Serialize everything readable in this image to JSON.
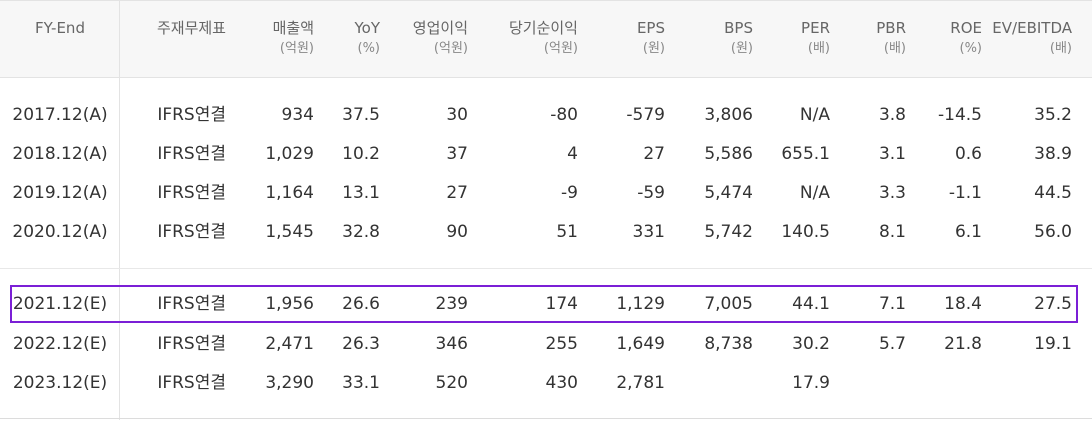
{
  "table": {
    "headers": [
      {
        "label": "FY-End",
        "unit": ""
      },
      {
        "label": "주재무제표",
        "unit": ""
      },
      {
        "label": "매출액",
        "unit": "(억원)"
      },
      {
        "label": "YoY",
        "unit": "(%)"
      },
      {
        "label": "영업이익",
        "unit": "(억원)"
      },
      {
        "label": "당기순이익",
        "unit": "(억원)"
      },
      {
        "label": "EPS",
        "unit": "(원)"
      },
      {
        "label": "BPS",
        "unit": "(원)"
      },
      {
        "label": "PER",
        "unit": "(배)"
      },
      {
        "label": "PBR",
        "unit": "(배)"
      },
      {
        "label": "ROE",
        "unit": "(%)"
      },
      {
        "label": "EV/EBITDA",
        "unit": "(배)"
      }
    ],
    "rows": [
      {
        "fy": "2017.12(A)",
        "type": "IFRS연결",
        "revenue": "934",
        "yoy": "37.5",
        "op": "30",
        "net": "-80",
        "eps": "-579",
        "bps": "3,806",
        "per": "N/A",
        "pbr": "3.8",
        "roe": "-14.5",
        "ev": "35.2"
      },
      {
        "fy": "2018.12(A)",
        "type": "IFRS연결",
        "revenue": "1,029",
        "yoy": "10.2",
        "op": "37",
        "net": "4",
        "eps": "27",
        "bps": "5,586",
        "per": "655.1",
        "pbr": "3.1",
        "roe": "0.6",
        "ev": "38.9"
      },
      {
        "fy": "2019.12(A)",
        "type": "IFRS연결",
        "revenue": "1,164",
        "yoy": "13.1",
        "op": "27",
        "net": "-9",
        "eps": "-59",
        "bps": "5,474",
        "per": "N/A",
        "pbr": "3.3",
        "roe": "-1.1",
        "ev": "44.5"
      },
      {
        "fy": "2020.12(A)",
        "type": "IFRS연결",
        "revenue": "1,545",
        "yoy": "32.8",
        "op": "90",
        "net": "51",
        "eps": "331",
        "bps": "5,742",
        "per": "140.5",
        "pbr": "8.1",
        "roe": "6.1",
        "ev": "56.0"
      },
      {
        "fy": "2021.12(E)",
        "type": "IFRS연결",
        "revenue": "1,956",
        "yoy": "26.6",
        "op": "239",
        "net": "174",
        "eps": "1,129",
        "bps": "7,005",
        "per": "44.1",
        "pbr": "7.1",
        "roe": "18.4",
        "ev": "27.5"
      },
      {
        "fy": "2022.12(E)",
        "type": "IFRS연결",
        "revenue": "2,471",
        "yoy": "26.3",
        "op": "346",
        "net": "255",
        "eps": "1,649",
        "bps": "8,738",
        "per": "30.2",
        "pbr": "5.7",
        "roe": "21.8",
        "ev": "19.1"
      },
      {
        "fy": "2023.12(E)",
        "type": "IFRS연결",
        "revenue": "3,290",
        "yoy": "33.1",
        "op": "520",
        "net": "430",
        "eps": "2,781",
        "bps": "",
        "per": "17.9",
        "pbr": "",
        "roe": "",
        "ev": ""
      }
    ]
  },
  "highlight_color": "#7b1fd6"
}
